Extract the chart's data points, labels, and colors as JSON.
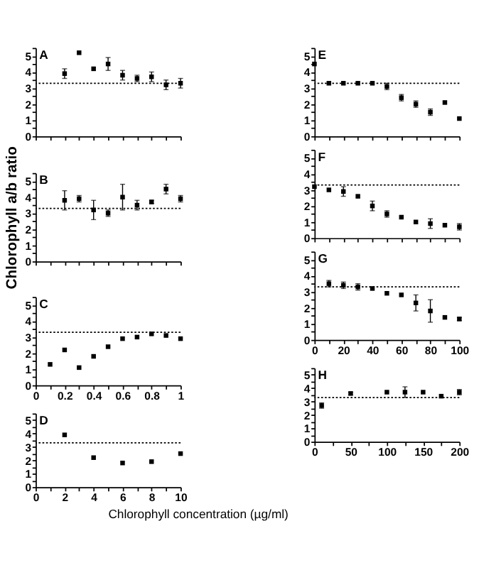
{
  "chart_data": [
    {
      "type": "scatter",
      "annotations": [
        "A"
      ],
      "x": [
        0.2,
        0.3,
        0.4,
        0.5,
        0.6,
        0.7,
        0.8,
        0.9,
        1.0
      ],
      "values": [
        3.9,
        5.2,
        4.2,
        4.5,
        3.8,
        3.6,
        3.7,
        3.2,
        3.3
      ],
      "errors": [
        0.3,
        null,
        null,
        0.4,
        0.3,
        0.2,
        0.3,
        0.3,
        0.3
      ],
      "color": "#000000",
      "marker": "square",
      "xlim": [
        0,
        1
      ],
      "xticks": [
        0,
        {
          "value": 0.1,
          "label": null
        },
        0.2,
        {
          "value": 0.3,
          "label": null
        },
        0.4,
        {
          "value": 0.5,
          "label": null
        },
        0.6,
        {
          "value": 0.7,
          "label": null
        },
        0.8,
        {
          "value": 0.9,
          "label": null
        },
        1
      ],
      "ylim": [
        0,
        5.5
      ],
      "yticks": [
        0,
        {
          "value": 0.5,
          "label": null
        },
        1,
        {
          "value": 1.5,
          "label": null
        },
        2,
        {
          "value": 2.5,
          "label": null
        },
        3,
        {
          "value": 3.5,
          "label": null
        },
        4,
        {
          "value": 4.5,
          "label": null
        },
        5,
        {
          "value": 5.5,
          "label": null
        }
      ],
      "tick_labels": "y",
      "ref_lines": [
        {
          "axis": "y",
          "value": 3.3,
          "color": "#000000",
          "line_style": "dotted"
        }
      ]
    },
    {
      "type": "scatter",
      "annotations": [
        "B"
      ],
      "ylabel": "Chlorophyll a/b ratio",
      "x": [
        0.2,
        0.3,
        0.4,
        0.5,
        0.6,
        0.7,
        0.8,
        0.9,
        1.0
      ],
      "values": [
        3.8,
        3.9,
        3.2,
        3.0,
        4.0,
        3.5,
        3.7,
        4.5,
        3.9
      ],
      "errors": [
        0.6,
        0.2,
        0.6,
        0.2,
        0.8,
        0.3,
        0.1,
        0.3,
        0.2
      ],
      "color": "#000000",
      "marker": "square",
      "xlim": [
        0,
        1
      ],
      "xticks": [
        0,
        {
          "value": 0.1,
          "label": null
        },
        0.2,
        {
          "value": 0.3,
          "label": null
        },
        0.4,
        {
          "value": 0.5,
          "label": null
        },
        0.6,
        {
          "value": 0.7,
          "label": null
        },
        0.8,
        {
          "value": 0.9,
          "label": null
        },
        1
      ],
      "ylim": [
        0,
        5.5
      ],
      "yticks": [
        0,
        {
          "value": 0.5,
          "label": null
        },
        1,
        {
          "value": 1.5,
          "label": null
        },
        2,
        {
          "value": 2.5,
          "label": null
        },
        3,
        {
          "value": 3.5,
          "label": null
        },
        4,
        {
          "value": 4.5,
          "label": null
        },
        5,
        {
          "value": 5.5,
          "label": null
        }
      ],
      "tick_labels": "y",
      "ref_lines": [
        {
          "axis": "y",
          "value": 3.3,
          "color": "#000000",
          "line_style": "dotted"
        }
      ]
    },
    {
      "type": "scatter",
      "annotations": [
        "C"
      ],
      "x": [
        0.1,
        0.2,
        0.3,
        0.4,
        0.5,
        0.6,
        0.7,
        0.8,
        0.9,
        1.0
      ],
      "values": [
        1.3,
        2.2,
        1.1,
        1.8,
        2.4,
        2.9,
        3.0,
        3.2,
        3.1,
        2.9
      ],
      "color": "#000000",
      "marker": "square",
      "xlim": [
        0,
        1
      ],
      "xticks": [
        0,
        {
          "value": 0.1,
          "label": null
        },
        0.2,
        {
          "value": 0.3,
          "label": null
        },
        0.4,
        {
          "value": 0.5,
          "label": null
        },
        0.6,
        {
          "value": 0.7,
          "label": null
        },
        0.8,
        {
          "value": 0.9,
          "label": null
        },
        1
      ],
      "ylim": [
        0,
        5.5
      ],
      "yticks": [
        0,
        {
          "value": 0.5,
          "label": null
        },
        1,
        {
          "value": 1.5,
          "label": null
        },
        2,
        {
          "value": 2.5,
          "label": null
        },
        3,
        {
          "value": 3.5,
          "label": null
        },
        4,
        {
          "value": 4.5,
          "label": null
        },
        5,
        {
          "value": 5.5,
          "label": null
        }
      ],
      "ref_lines": [
        {
          "axis": "y",
          "value": 3.3,
          "color": "#000000",
          "line_style": "dotted"
        }
      ]
    },
    {
      "type": "scatter",
      "annotations": [
        "D"
      ],
      "xlabel": "Chlorophyll concentration  (µg/ml)",
      "x": [
        2,
        4,
        6,
        8,
        10
      ],
      "values": [
        3.9,
        2.2,
        1.8,
        1.9,
        2.5
      ],
      "color": "#000000",
      "marker": "square",
      "xlim": [
        0,
        10
      ],
      "xticks": [
        0,
        {
          "value": 1,
          "label": null
        },
        2,
        {
          "value": 3,
          "label": null
        },
        4,
        {
          "value": 5,
          "label": null
        },
        6,
        {
          "value": 7,
          "label": null
        },
        8,
        {
          "value": 9,
          "label": null
        },
        10
      ],
      "ylim": [
        0,
        5.5
      ],
      "yticks": [
        0,
        {
          "value": 0.5,
          "label": null
        },
        1,
        {
          "value": 1.5,
          "label": null
        },
        2,
        {
          "value": 2.5,
          "label": null
        },
        3,
        {
          "value": 3.5,
          "label": null
        },
        4,
        {
          "value": 4.5,
          "label": null
        },
        5,
        {
          "value": 5.5,
          "label": null
        }
      ],
      "ref_lines": [
        {
          "axis": "y",
          "value": 3.3,
          "color": "#000000",
          "line_style": "dotted"
        }
      ]
    },
    {
      "type": "scatter",
      "annotations": [
        "E"
      ],
      "x": [
        0,
        10,
        20,
        30,
        40,
        50,
        60,
        70,
        80,
        90,
        100
      ],
      "values": [
        4.5,
        3.3,
        3.3,
        3.3,
        3.3,
        3.1,
        2.4,
        2.0,
        1.5,
        2.1,
        1.1
      ],
      "errors": [
        null,
        null,
        null,
        null,
        null,
        0.2,
        0.2,
        0.2,
        0.2,
        null,
        null
      ],
      "color": "#000000",
      "marker": "square",
      "xlim": [
        0,
        100
      ],
      "xticks": [
        0,
        {
          "value": 10,
          "label": null
        },
        20,
        {
          "value": 30,
          "label": null
        },
        40,
        {
          "value": 50,
          "label": null
        },
        60,
        {
          "value": 70,
          "label": null
        },
        80,
        {
          "value": 90,
          "label": null
        },
        100
      ],
      "ylim": [
        0,
        5.5
      ],
      "yticks": [
        0,
        {
          "value": 0.5,
          "label": null
        },
        1,
        {
          "value": 1.5,
          "label": null
        },
        2,
        {
          "value": 2.5,
          "label": null
        },
        3,
        {
          "value": 3.5,
          "label": null
        },
        4,
        {
          "value": 4.5,
          "label": null
        },
        5,
        {
          "value": 5.5,
          "label": null
        }
      ],
      "tick_labels": "y",
      "ref_lines": [
        {
          "axis": "y",
          "value": 3.3,
          "color": "#000000",
          "line_style": "dotted"
        }
      ]
    },
    {
      "type": "scatter",
      "annotations": [
        "F"
      ],
      "x": [
        0,
        10,
        20,
        30,
        40,
        50,
        60,
        70,
        80,
        90,
        100
      ],
      "values": [
        3.2,
        3.0,
        2.9,
        2.6,
        2.0,
        1.5,
        1.3,
        1.0,
        0.9,
        0.8,
        0.7
      ],
      "errors": [
        null,
        null,
        0.3,
        null,
        0.3,
        0.2,
        null,
        null,
        0.3,
        null,
        0.2
      ],
      "color": "#000000",
      "marker": "square",
      "xlim": [
        0,
        100
      ],
      "xticks": [
        0,
        {
          "value": 10,
          "label": null
        },
        20,
        {
          "value": 30,
          "label": null
        },
        40,
        {
          "value": 50,
          "label": null
        },
        60,
        {
          "value": 70,
          "label": null
        },
        80,
        {
          "value": 90,
          "label": null
        },
        100
      ],
      "ylim": [
        0,
        5.5
      ],
      "yticks": [
        0,
        {
          "value": 0.5,
          "label": null
        },
        1,
        {
          "value": 1.5,
          "label": null
        },
        2,
        {
          "value": 2.5,
          "label": null
        },
        3,
        {
          "value": 3.5,
          "label": null
        },
        4,
        {
          "value": 4.5,
          "label": null
        },
        5,
        {
          "value": 5.5,
          "label": null
        }
      ],
      "tick_labels": "y",
      "ref_lines": [
        {
          "axis": "y",
          "value": 3.3,
          "color": "#000000",
          "line_style": "dotted"
        }
      ]
    },
    {
      "type": "scatter",
      "annotations": [
        "G"
      ],
      "x": [
        10,
        20,
        30,
        40,
        50,
        60,
        70,
        80,
        90,
        100
      ],
      "values": [
        3.5,
        3.4,
        3.3,
        3.2,
        2.9,
        2.8,
        2.3,
        1.8,
        1.4,
        1.3
      ],
      "errors": [
        0.2,
        0.2,
        0.2,
        null,
        null,
        null,
        0.5,
        0.7,
        null,
        0.1
      ],
      "color": "#000000",
      "marker": "square",
      "xlim": [
        0,
        100
      ],
      "xticks": [
        0,
        {
          "value": 10,
          "label": null
        },
        20,
        {
          "value": 30,
          "label": null
        },
        40,
        {
          "value": 50,
          "label": null
        },
        60,
        {
          "value": 70,
          "label": null
        },
        80,
        {
          "value": 90,
          "label": null
        },
        100
      ],
      "ylim": [
        0,
        5.5
      ],
      "yticks": [
        0,
        {
          "value": 0.5,
          "label": null
        },
        1,
        {
          "value": 1.5,
          "label": null
        },
        2,
        {
          "value": 2.5,
          "label": null
        },
        3,
        {
          "value": 3.5,
          "label": null
        },
        4,
        {
          "value": 4.5,
          "label": null
        },
        5,
        {
          "value": 5.5,
          "label": null
        }
      ],
      "ref_lines": [
        {
          "axis": "y",
          "value": 3.3,
          "color": "#000000",
          "line_style": "dotted"
        }
      ]
    },
    {
      "type": "scatter",
      "annotations": [
        "H"
      ],
      "x": [
        10,
        50,
        100,
        125,
        150,
        175,
        200
      ],
      "values": [
        2.7,
        3.6,
        3.7,
        3.7,
        3.7,
        3.4,
        3.7
      ],
      "errors": [
        0.2,
        0.1,
        null,
        0.4,
        null,
        null,
        0.2
      ],
      "color": "#000000",
      "marker": "square",
      "xlim": [
        0,
        200
      ],
      "xticks": [
        0,
        {
          "value": 25,
          "label": null
        },
        50,
        {
          "value": 75,
          "label": null
        },
        100,
        {
          "value": 125,
          "label": null
        },
        150,
        {
          "value": 175,
          "label": null
        },
        200
      ],
      "ylim": [
        0,
        5.5
      ],
      "yticks": [
        0,
        {
          "value": 0.5,
          "label": null
        },
        1,
        {
          "value": 1.5,
          "label": null
        },
        2,
        {
          "value": 2.5,
          "label": null
        },
        3,
        {
          "value": 3.5,
          "label": null
        },
        4,
        {
          "value": 4.5,
          "label": null
        },
        5,
        {
          "value": 5.5,
          "label": null
        }
      ],
      "ref_lines": [
        {
          "axis": "y",
          "value": 3.3,
          "color": "#000000",
          "line_style": "dotted"
        }
      ]
    }
  ]
}
